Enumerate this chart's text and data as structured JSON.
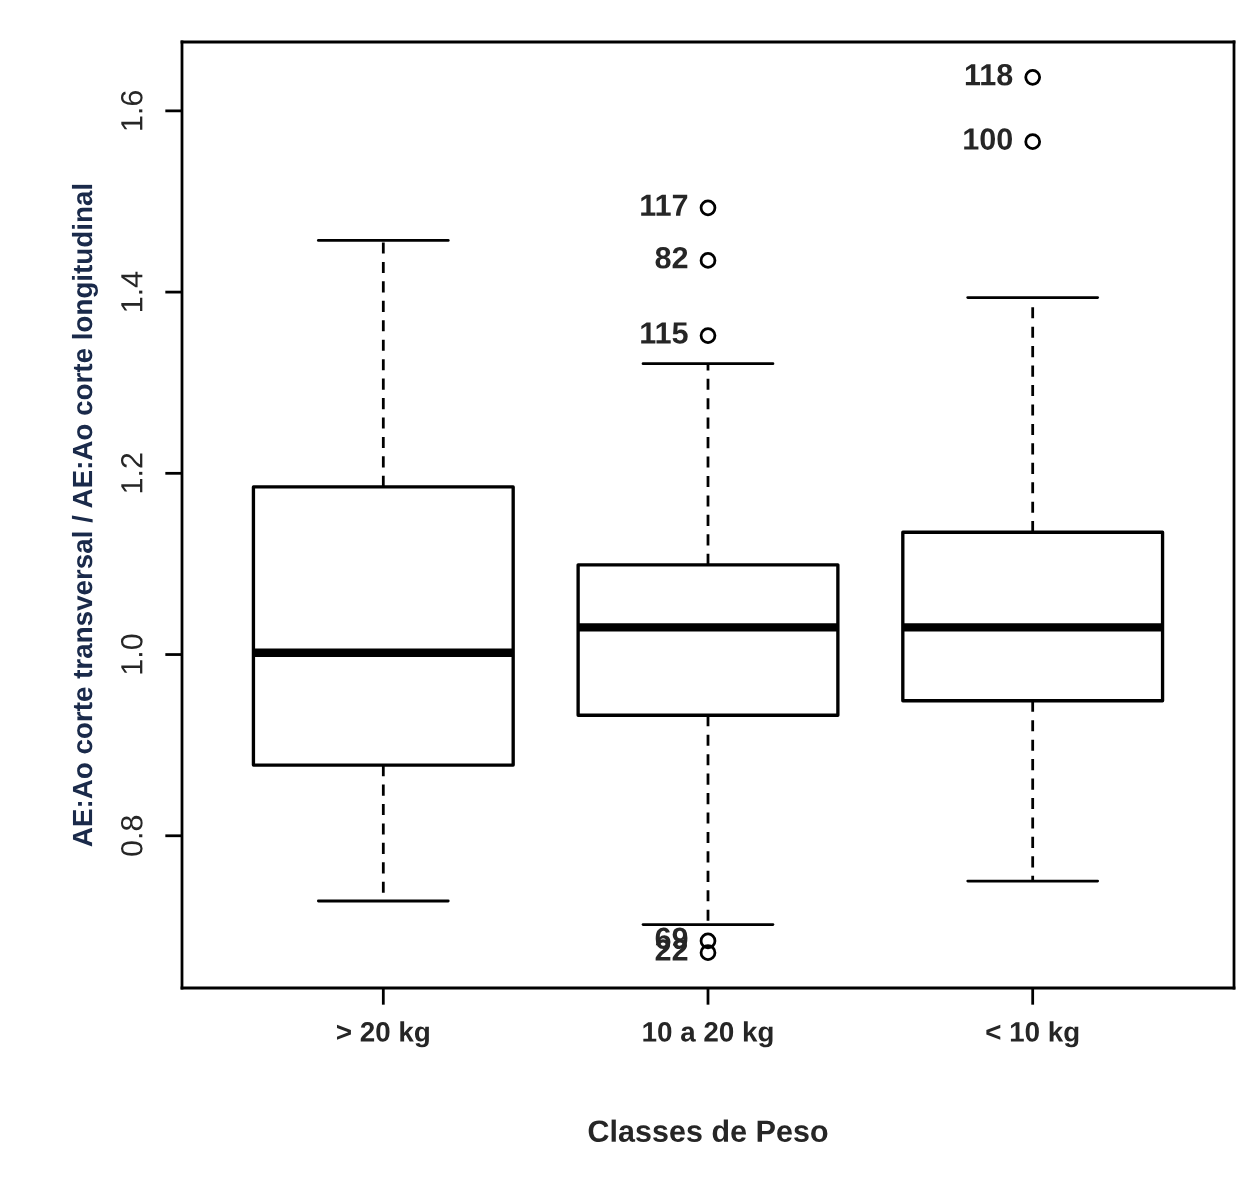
{
  "chart_data": {
    "type": "box",
    "xlabel": "Classes de Peso",
    "ylabel": "AE:Ao corte transversal / AE:Ao corte longitudinal",
    "categories": [
      "> 20 kg",
      "10 a 20 kg",
      "< 10 kg"
    ],
    "boxes": [
      {
        "low": 0.728,
        "q1": 0.878,
        "median": 1.002,
        "q3": 1.185,
        "high": 1.457
      },
      {
        "low": 0.702,
        "q1": 0.933,
        "median": 1.03,
        "q3": 1.099,
        "high": 1.321,
        "outliers": [
          1.493,
          1.435,
          1.352,
          0.684,
          0.671
        ]
      },
      {
        "low": 0.75,
        "q1": 0.949,
        "median": 1.03,
        "q3": 1.135,
        "high": 1.394,
        "outliers": [
          1.637,
          1.566
        ]
      }
    ],
    "ylim": [
      0.632,
      1.676
    ],
    "yticks": [
      {
        "value": 0.8,
        "label": "0.8"
      },
      {
        "value": 1.0,
        "label": "1.0"
      },
      {
        "value": 1.2,
        "label": "1.2"
      },
      {
        "value": 1.4,
        "label": "1.4"
      },
      {
        "value": 1.6,
        "label": "1.6"
      }
    ],
    "annotations": [
      "117",
      "82",
      "115",
      "69",
      "22",
      "118",
      "100"
    ]
  }
}
